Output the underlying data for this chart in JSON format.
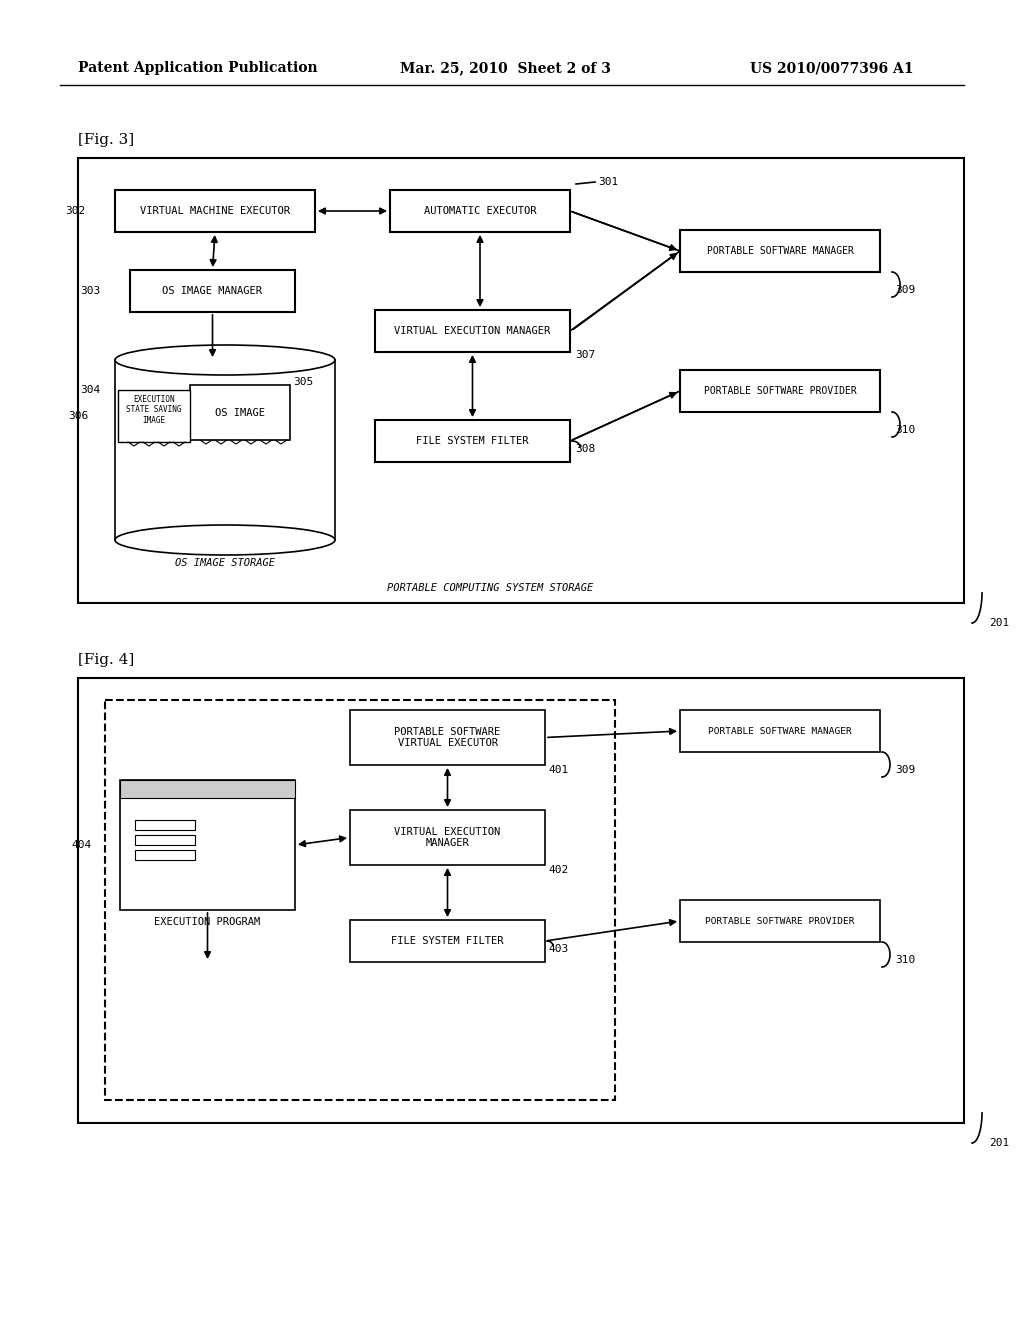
{
  "header_left": "Patent Application Publication",
  "header_mid": "Mar. 25, 2010  Sheet 2 of 3",
  "header_right": "US 2010/0077396 A1",
  "fig3_label": "[Fig. 3]",
  "fig4_label": "[Fig. 4]",
  "bg_color": "#ffffff",
  "box_color": "#000000",
  "text_color": "#000000"
}
